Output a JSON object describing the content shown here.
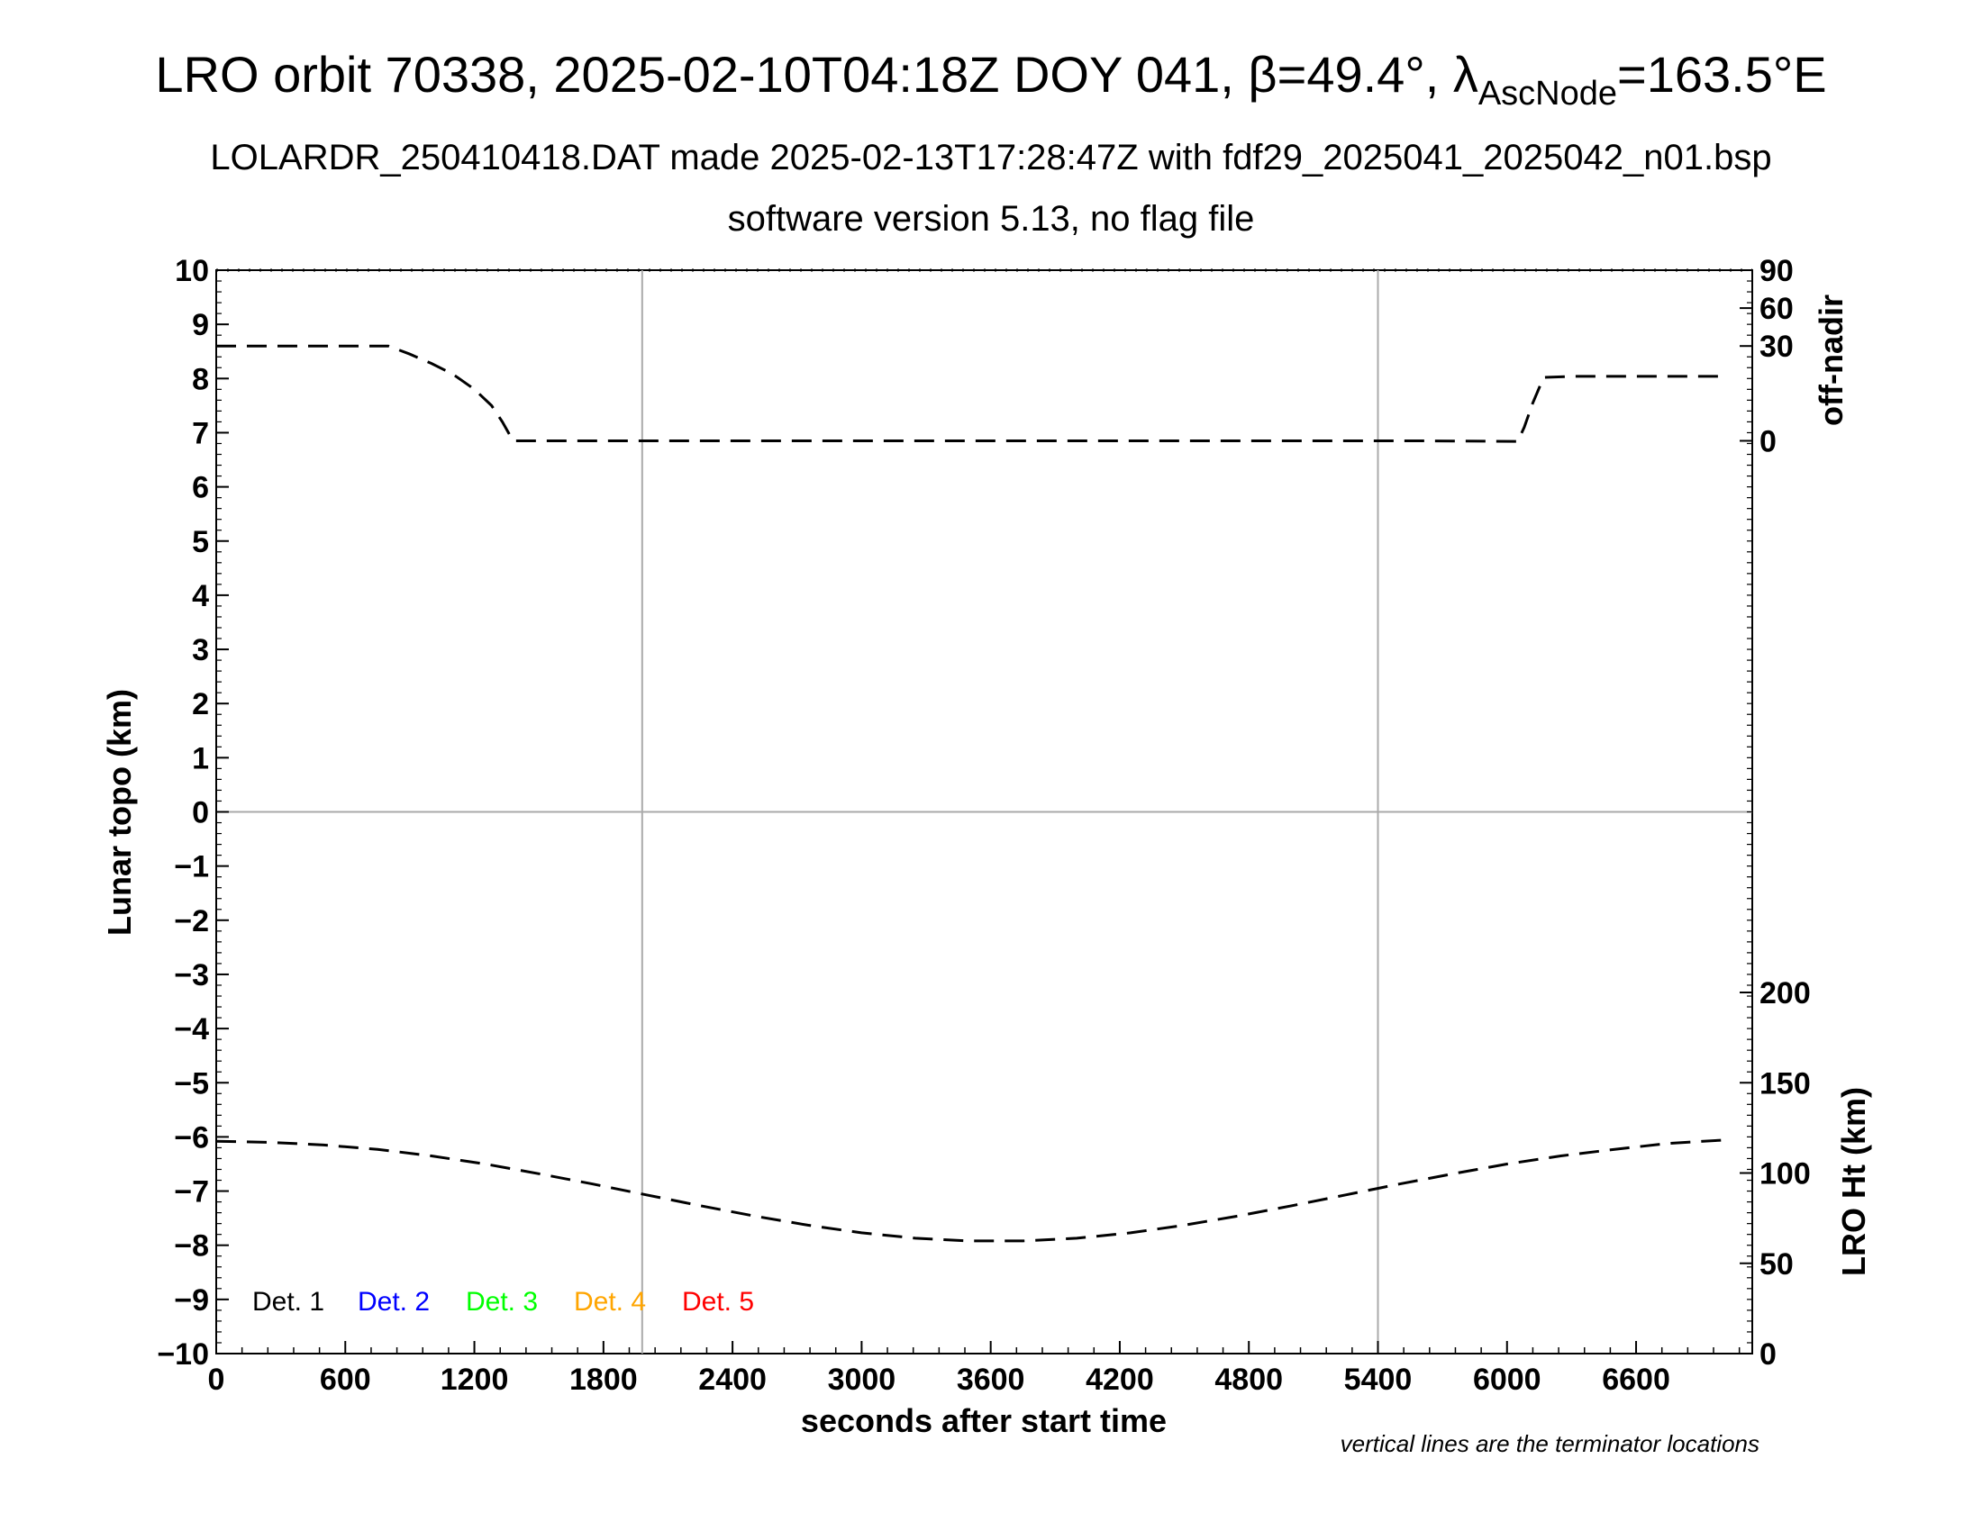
{
  "header": {
    "title_prefix": "LRO orbit 70338, 2025-02-10T04:18Z DOY 041, β=49.4°, λ",
    "title_sub": "AscNode",
    "title_suffix": "=163.5°E",
    "subtitle1": "LOLARDR_250410418.DAT made 2025-02-13T17:28:47Z with fdf29_2025041_2025042_n01.bsp",
    "subtitle2": "software version 5.13, no flag file"
  },
  "chart_data": {
    "type": "line",
    "xlabel": "seconds after start time",
    "ylabel_left": "Lunar topo (km)",
    "ylabel_right_top": "off-nadir",
    "ylabel_right_bottom": "LRO Ht (km)",
    "xlim": [
      0,
      7140
    ],
    "ylim_left": [
      -10,
      10
    ],
    "x_ticks": [
      "0",
      "600",
      "1200",
      "1800",
      "2400",
      "3000",
      "3600",
      "4200",
      "4800",
      "5400",
      "6000",
      "6600"
    ],
    "y_ticks_left": [
      "10",
      "9",
      "8",
      "7",
      "6",
      "5",
      "4",
      "3",
      "2",
      "1",
      "0",
      "−1",
      "−2",
      "−3",
      "−4",
      "−5",
      "−6",
      "−7",
      "−8",
      "−9",
      "−10"
    ],
    "right_top_ticks": [
      "90",
      "60",
      "30",
      "0"
    ],
    "right_bottom_ticks": [
      "200",
      "150",
      "100",
      "50",
      "0"
    ],
    "terminators": [
      1980,
      5400
    ],
    "legend": [
      {
        "label": "Det. 1",
        "color": "#000000"
      },
      {
        "label": "Det. 2",
        "color": "#0000ff"
      },
      {
        "label": "Det. 3",
        "color": "#00ff00"
      },
      {
        "label": "Det. 4",
        "color": "#ffa500"
      },
      {
        "label": "Det. 5",
        "color": "#ff0000"
      }
    ],
    "series": [
      {
        "x": [
          0,
          200,
          400,
          600,
          800,
          900,
          1000,
          1100,
          1200,
          1280,
          1330,
          1380,
          1500,
          2000,
          3000,
          4000,
          5000,
          5600,
          6050,
          6080,
          6120,
          6170,
          6300,
          7000
        ],
        "y": [
          8.6,
          8.6,
          8.6,
          8.6,
          8.6,
          8.45,
          8.28,
          8.08,
          7.8,
          7.5,
          7.2,
          6.85,
          6.85,
          6.85,
          6.85,
          6.85,
          6.85,
          6.85,
          6.84,
          7.1,
          7.55,
          8.02,
          8.04,
          8.04
        ]
      },
      {
        "x": [
          0,
          250,
          500,
          750,
          1000,
          1250,
          1500,
          1750,
          2000,
          2250,
          2500,
          2750,
          3000,
          3250,
          3500,
          3750,
          4000,
          4250,
          4500,
          4750,
          5000,
          5250,
          5500,
          5750,
          6000,
          6250,
          6500,
          6750,
          7000
        ],
        "y": [
          -6.08,
          -6.1,
          -6.15,
          -6.23,
          -6.35,
          -6.5,
          -6.68,
          -6.87,
          -7.07,
          -7.27,
          -7.46,
          -7.63,
          -7.77,
          -7.87,
          -7.92,
          -7.92,
          -7.87,
          -7.77,
          -7.63,
          -7.46,
          -7.27,
          -7.07,
          -6.87,
          -6.68,
          -6.5,
          -6.35,
          -6.23,
          -6.12,
          -6.06
        ]
      }
    ],
    "note": "vertical lines are the terminator locations"
  }
}
